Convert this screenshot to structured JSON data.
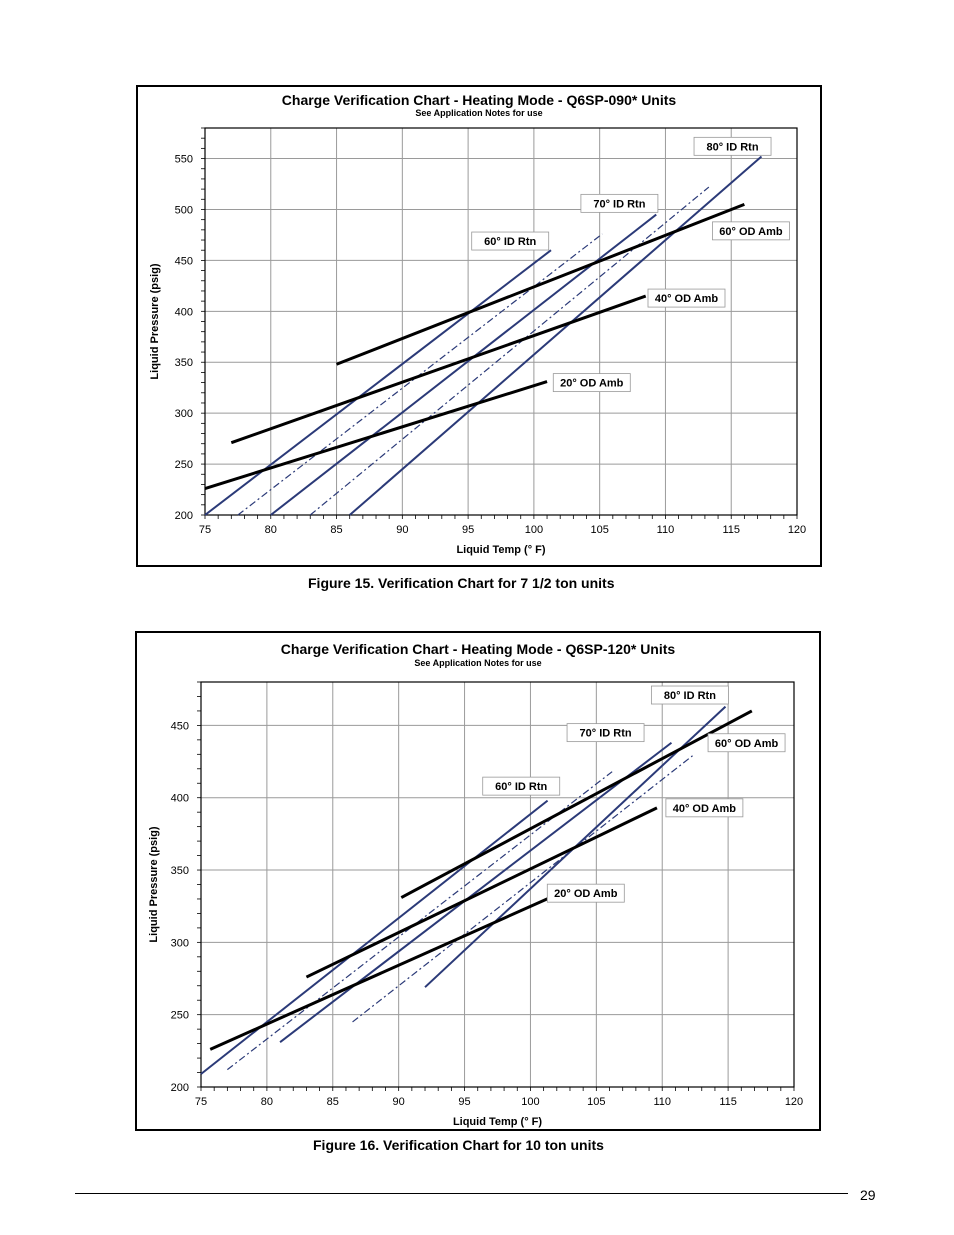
{
  "figures": [
    {
      "title": "Charge Verification Chart - Heating Mode - Q6SP-090* Units",
      "subtitle": "See Application Notes for use",
      "caption": "Figure 15. Verification Chart for 7 1/2 ton units"
    },
    {
      "title": "Charge Verification Chart - Heating Mode - Q6SP-120* Units",
      "subtitle": "See Application Notes for use",
      "caption": "Figure 16. Verification Chart for 10 ton units"
    }
  ],
  "page_number": "29",
  "colors": {
    "id_rtn_line": "#2b3a78",
    "od_amb_line": "#000000",
    "grid": "#9a9a9a"
  },
  "chart_data": [
    {
      "type": "line",
      "title": "Charge Verification Chart - Heating Mode - Q6SP-090* Units",
      "subtitle": "See Application Notes for use",
      "xlabel": "Liquid Temp (° F)",
      "ylabel": "Liquid Pressure (psig)",
      "xlim": [
        75,
        120
      ],
      "ylim": [
        200,
        580
      ],
      "xticks": [
        75,
        80,
        85,
        90,
        95,
        100,
        105,
        110,
        115,
        120
      ],
      "yticks": [
        200,
        250,
        300,
        350,
        400,
        450,
        500,
        550
      ],
      "grid": true,
      "series": [
        {
          "name": "60° ID Rtn",
          "style": "solid",
          "group": "id",
          "points": [
            [
              75,
              200
            ],
            [
              101.3,
              460
            ]
          ]
        },
        {
          "name": "70° ID Rtn",
          "style": "solid",
          "group": "id",
          "points": [
            [
              80,
              200
            ],
            [
              109.3,
              495
            ]
          ]
        },
        {
          "name": "80° ID Rtn",
          "style": "solid",
          "group": "id",
          "points": [
            [
              86,
              200
            ],
            [
              117.3,
              552
            ]
          ]
        },
        {
          "name": "",
          "style": "dashdot",
          "group": "id",
          "points": [
            [
              77.5,
              200
            ],
            [
              105.2,
              476
            ]
          ]
        },
        {
          "name": "",
          "style": "dashdot",
          "group": "id",
          "points": [
            [
              83,
              200
            ],
            [
              113.3,
              522
            ]
          ]
        },
        {
          "name": "60° OD Amb",
          "style": "solid",
          "group": "od",
          "points": [
            [
              85,
              348
            ],
            [
              116,
              505
            ]
          ]
        },
        {
          "name": "40° OD Amb",
          "style": "solid",
          "group": "od",
          "points": [
            [
              77,
              271
            ],
            [
              108.5,
              415
            ]
          ]
        },
        {
          "name": "20° OD Amb",
          "style": "solid",
          "group": "od",
          "points": [
            [
              75,
              226
            ],
            [
              101,
              331
            ]
          ]
        }
      ],
      "labels": [
        {
          "text": "80° ID Rtn",
          "x": 115.1,
          "y": 562
        },
        {
          "text": "70° ID Rtn",
          "x": 106.5,
          "y": 506
        },
        {
          "text": "60° ID Rtn",
          "x": 98.2,
          "y": 469
        },
        {
          "text": "60° OD Amb",
          "x": 116.5,
          "y": 479
        },
        {
          "text": "40° OD Amb",
          "x": 111.6,
          "y": 413
        },
        {
          "text": "20° OD Amb",
          "x": 104.4,
          "y": 330
        }
      ]
    },
    {
      "type": "line",
      "title": "Charge Verification Chart - Heating Mode - Q6SP-120* Units",
      "subtitle": "See Application Notes for use",
      "xlabel": "Liquid Temp (° F)",
      "ylabel": "Liquid Pressure (psig)",
      "xlim": [
        75,
        120
      ],
      "ylim": [
        200,
        480
      ],
      "xticks": [
        75,
        80,
        85,
        90,
        95,
        100,
        105,
        110,
        115,
        120
      ],
      "yticks": [
        200,
        250,
        300,
        350,
        400,
        450
      ],
      "grid": true,
      "series": [
        {
          "name": "60° ID Rtn",
          "style": "solid",
          "group": "id",
          "points": [
            [
              75,
              209
            ],
            [
              101.3,
              398
            ]
          ]
        },
        {
          "name": "70° ID Rtn",
          "style": "solid",
          "group": "id",
          "points": [
            [
              81,
              231
            ],
            [
              110.7,
              438
            ]
          ]
        },
        {
          "name": "80° ID Rtn",
          "style": "solid",
          "group": "id",
          "points": [
            [
              92,
              269
            ],
            [
              114.8,
              463
            ]
          ]
        },
        {
          "name": "",
          "style": "dashdot",
          "group": "id",
          "points": [
            [
              77,
              212
            ],
            [
              106.2,
              418
            ]
          ]
        },
        {
          "name": "",
          "style": "dashdot",
          "group": "id",
          "points": [
            [
              86.5,
              245
            ],
            [
              112.3,
              429
            ]
          ]
        },
        {
          "name": "60° OD Amb",
          "style": "solid",
          "group": "od",
          "points": [
            [
              90.2,
              331
            ],
            [
              116.8,
              460
            ]
          ]
        },
        {
          "name": "40° OD Amb",
          "style": "solid",
          "group": "od",
          "points": [
            [
              83,
              276
            ],
            [
              109.6,
              393
            ]
          ]
        },
        {
          "name": "20° OD Amb",
          "style": "solid",
          "group": "od",
          "points": [
            [
              75.7,
              226
            ],
            [
              102,
              333
            ]
          ]
        }
      ],
      "labels": [
        {
          "text": "80° ID Rtn",
          "x": 112.1,
          "y": 471
        },
        {
          "text": "70° ID Rtn",
          "x": 105.7,
          "y": 445
        },
        {
          "text": "60° ID Rtn",
          "x": 99.3,
          "y": 408
        },
        {
          "text": "60° OD Amb",
          "x": 116.4,
          "y": 438
        },
        {
          "text": "40° OD Amb",
          "x": 113.2,
          "y": 393
        },
        {
          "text": "20° OD Amb",
          "x": 104.2,
          "y": 334
        }
      ]
    }
  ]
}
